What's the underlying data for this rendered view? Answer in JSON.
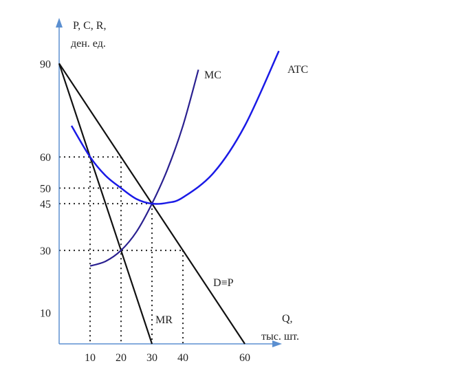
{
  "chart_data": {
    "type": "line",
    "ylabel": [
      "P, C, R,",
      "ден. ед."
    ],
    "xlabel": [
      "Q,",
      "тыс. шт."
    ],
    "xlim": [
      0,
      75
    ],
    "ylim": [
      0,
      100
    ],
    "x_ticks": [
      10,
      20,
      30,
      40,
      60
    ],
    "y_ticks": [
      90,
      60,
      50,
      45,
      30,
      10
    ],
    "grid": false,
    "colors": {
      "axis": "#5b8fd0",
      "demand": "#111111",
      "mr": "#111111",
      "mc": "#2a2090",
      "atc": "#1a1ae6"
    },
    "series": [
      {
        "name": "D≡P",
        "points": [
          [
            0,
            90
          ],
          [
            60,
            0
          ]
        ]
      },
      {
        "name": "MR",
        "points": [
          [
            0,
            90
          ],
          [
            30,
            0
          ]
        ]
      },
      {
        "name": "MC",
        "points": [
          [
            10,
            25
          ],
          [
            15,
            26.5
          ],
          [
            20,
            30
          ],
          [
            25,
            36
          ],
          [
            30,
            45
          ],
          [
            35,
            56
          ],
          [
            40,
            70
          ],
          [
            45,
            88
          ]
        ]
      },
      {
        "name": "ATC",
        "points": [
          [
            4,
            70
          ],
          [
            10,
            60
          ],
          [
            15,
            54
          ],
          [
            20,
            50
          ],
          [
            25,
            46.5
          ],
          [
            30,
            45
          ],
          [
            35,
            45.3
          ],
          [
            40,
            47
          ],
          [
            50,
            55
          ],
          [
            60,
            70
          ],
          [
            71,
            94
          ]
        ]
      }
    ],
    "guides": [
      {
        "h": 60,
        "to_x": 20
      },
      {
        "h": 50,
        "to_x": 20
      },
      {
        "h": 45,
        "to_x": 30
      },
      {
        "h": 30,
        "to_x": 40
      },
      {
        "v": 10,
        "from_y": 60
      },
      {
        "v": 20,
        "from_y": 60
      },
      {
        "v": 30,
        "from_y": 45
      },
      {
        "v": 40,
        "from_y": 30
      }
    ]
  }
}
